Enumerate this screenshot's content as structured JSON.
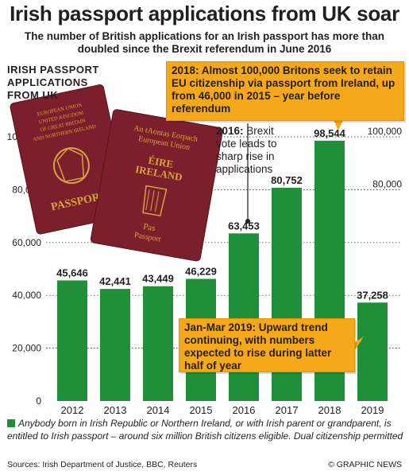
{
  "title": "Irish passport applications from UK soar",
  "subtitle": "The number of British applications for an Irish passport has more than doubled since the Brexit referendum in June 2016",
  "ylabel_lines": [
    "IRISH PASSPORT",
    "APPLICATIONS",
    "FROM UK"
  ],
  "callouts": {
    "c2018": "2018: Almost 100,000 Britons seek to retain EU citizenship via passport from Ireland, up from 46,000 in 2015 – year before referendum",
    "c2016_bold": "2016:",
    "c2016_text": " Brexit vote leads to sharp rise in applications",
    "c2019": "Jan-Mar 2019: Upward trend continuing, with numbers expected to rise during latter half of year"
  },
  "footnote": "Anybody born in Irish Republic or Northern Ireland, or with Irish parent or grandparent, is entitled to Irish passport – around six million British citizens eligible. Dual citizenship permitted",
  "sources": "Sources: Irish Department of Justice, BBC, Reuters",
  "credit": "© GRAPHIC NEWS",
  "passports": {
    "uk_lines": [
      "EUROPEAN UNION",
      "UNITED KINGDOM",
      "OF GREAT BRITAIN",
      "AND NORTHERN IRELAND"
    ],
    "uk_word": "PASSPORT",
    "ie_lines": [
      "An tAontas Eorpach",
      "European Union"
    ],
    "ie_country": [
      "ÉIRE",
      "IRELAND"
    ],
    "ie_word": [
      "Pas",
      "Passport"
    ]
  },
  "colors": {
    "bar": "#1f8f3a",
    "callout": "#f6a81b",
    "passport": "#7a1f2b",
    "gold": "#d6a542"
  },
  "chart_data": {
    "type": "bar",
    "categories": [
      "2012",
      "2013",
      "2014",
      "2015",
      "2016",
      "2017",
      "2018",
      "2019"
    ],
    "values": [
      45646,
      42441,
      43449,
      46229,
      63453,
      80752,
      98544,
      37258
    ],
    "value_labels": [
      "45,646",
      "42,441",
      "43,449",
      "46,229",
      "63,453",
      "80,752",
      "98,544",
      "37,258"
    ],
    "yticks": [
      0,
      20000,
      40000,
      60000,
      80000,
      100000
    ],
    "ytick_labels": [
      "0",
      "20,000",
      "40,000",
      "60,000",
      "80,000",
      "100,000"
    ],
    "ylim": [
      0,
      100000
    ],
    "grid": true
  }
}
